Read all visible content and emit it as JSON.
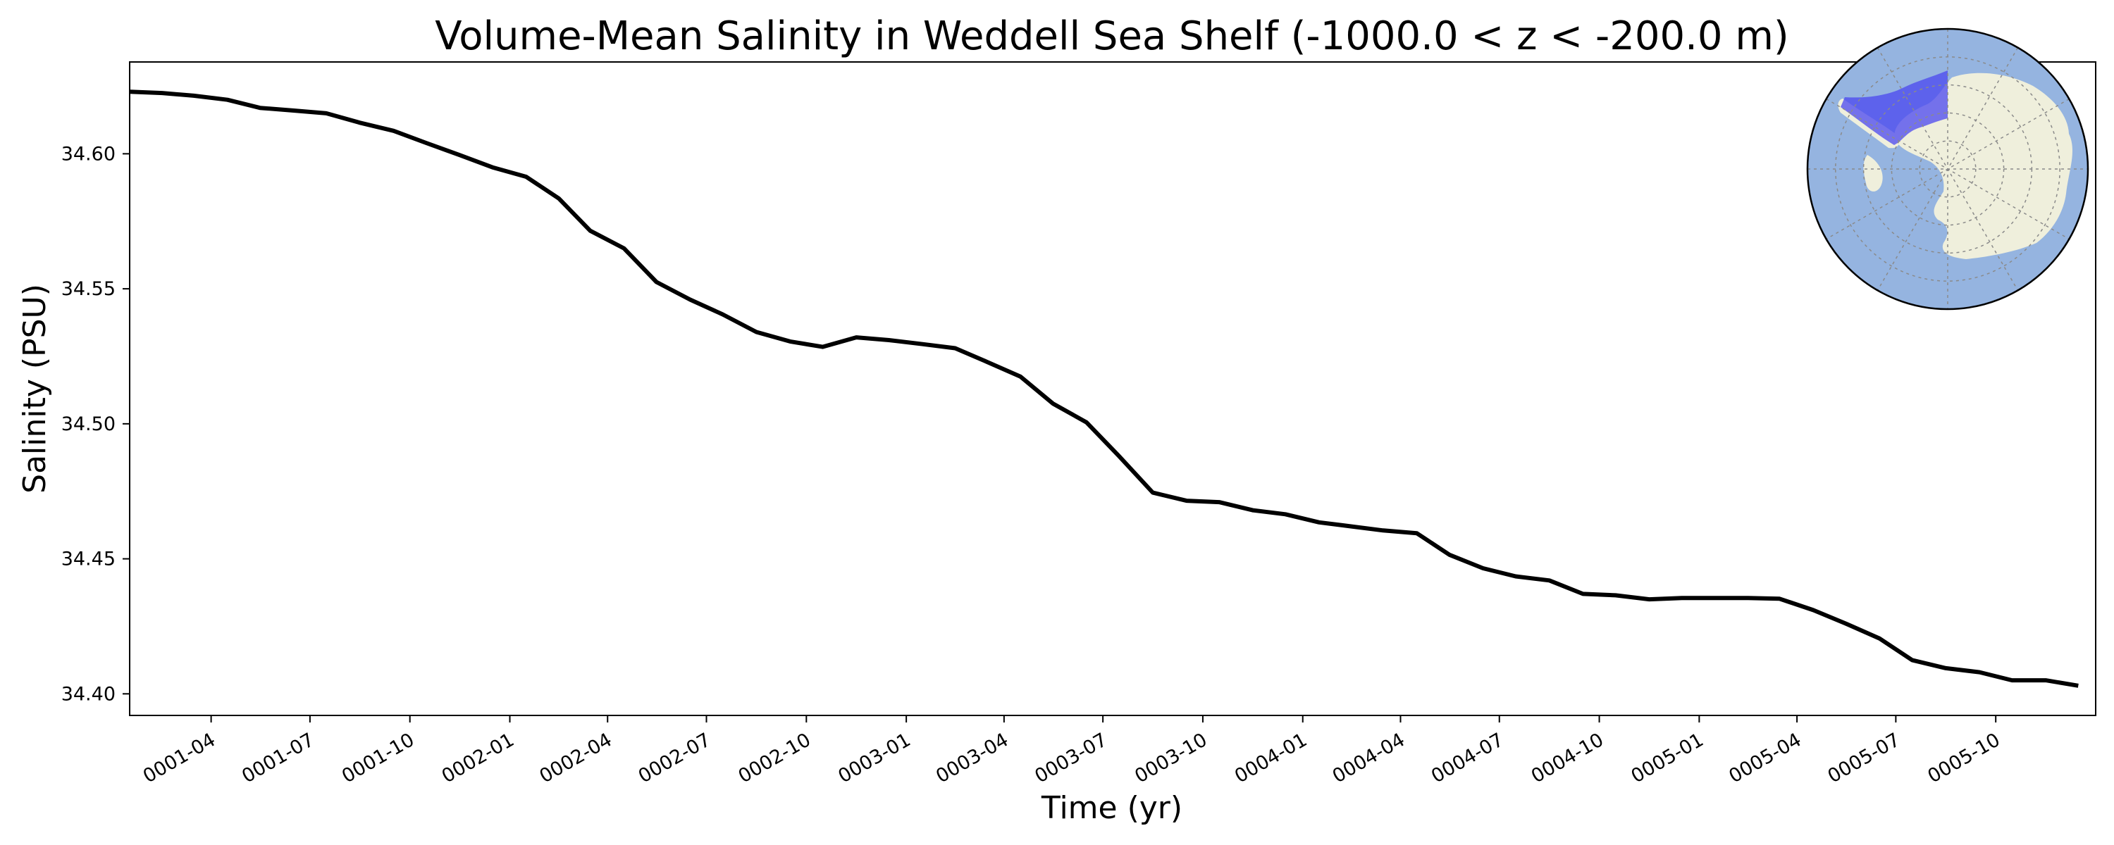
{
  "chart_data": {
    "type": "line",
    "title": "Volume-Mean Salinity in Weddell Sea Shelf (-1000.0 < z < -200.0 m)",
    "xlabel": "Time (yr)",
    "ylabel": "Salinity (PSU)",
    "xlim": [
      "0001-01-16",
      "0006-01-01"
    ],
    "ylim": [
      34.392,
      34.634
    ],
    "yticks": [
      34.4,
      34.45,
      34.5,
      34.55,
      34.6
    ],
    "ytick_labels": [
      "34.40",
      "34.45",
      "34.50",
      "34.55",
      "34.60"
    ],
    "xticks": [
      "0001-04-01",
      "0001-07-01",
      "0001-10-01",
      "0002-01-01",
      "0002-04-01",
      "0002-07-01",
      "0002-10-01",
      "0003-01-01",
      "0003-04-01",
      "0003-07-01",
      "0003-10-01",
      "0004-01-01",
      "0004-04-01",
      "0004-07-01",
      "0004-10-01",
      "0005-01-01",
      "0005-04-01",
      "0005-07-01",
      "0005-10-01"
    ],
    "xtick_labels": [
      "0001-04",
      "0001-07",
      "0001-10",
      "0002-01",
      "0002-04",
      "0002-07",
      "0002-10",
      "0003-01",
      "0003-04",
      "0003-07",
      "0003-10",
      "0004-01",
      "0004-04",
      "0004-07",
      "0004-10",
      "0005-01",
      "0005-04",
      "0005-07",
      "0005-10"
    ],
    "grid": false,
    "line_color": "#000000",
    "series": [
      {
        "x": [
          "0001-01-16",
          "0001-02-15",
          "0001-03-16",
          "0001-04-16",
          "0001-05-16",
          "0001-06-16",
          "0001-07-16",
          "0001-08-16",
          "0001-09-16",
          "0001-10-16",
          "0001-11-16",
          "0001-12-16",
          "0002-01-16",
          "0002-02-15",
          "0002-03-16",
          "0002-04-16",
          "0002-05-16",
          "0002-06-16",
          "0002-07-16",
          "0002-08-16",
          "0002-09-16",
          "0002-10-16",
          "0002-11-16",
          "0002-12-16",
          "0003-01-16",
          "0003-02-15",
          "0003-03-16",
          "0003-04-16",
          "0003-05-16",
          "0003-06-16",
          "0003-07-16",
          "0003-08-16",
          "0003-09-16",
          "0003-10-16",
          "0003-11-16",
          "0003-12-16",
          "0004-01-16",
          "0004-02-15",
          "0004-03-16",
          "0004-04-16",
          "0004-05-16",
          "0004-06-16",
          "0004-07-16",
          "0004-08-16",
          "0004-09-16",
          "0004-10-16",
          "0004-11-16",
          "0004-12-16",
          "0005-01-16",
          "0005-02-15",
          "0005-03-16",
          "0005-04-16",
          "0005-05-16",
          "0005-06-16",
          "0005-07-16",
          "0005-08-16",
          "0005-09-16",
          "0005-10-16",
          "0005-11-16",
          "0005-12-16"
        ],
        "values": [
          34.623,
          34.6225,
          34.6215,
          34.62,
          34.617,
          34.616,
          34.615,
          34.6115,
          34.6085,
          34.604,
          34.5995,
          34.595,
          34.5915,
          34.5835,
          34.5715,
          34.565,
          34.5525,
          34.546,
          34.5405,
          34.534,
          34.5305,
          34.5285,
          34.532,
          34.531,
          34.5295,
          34.528,
          34.523,
          34.5175,
          34.5075,
          34.5005,
          34.488,
          34.4745,
          34.4715,
          34.471,
          34.468,
          34.4665,
          34.4635,
          34.462,
          34.4605,
          34.4595,
          34.4515,
          34.4465,
          34.4435,
          34.442,
          34.437,
          34.4365,
          34.435,
          34.4355,
          34.4355,
          34.4355,
          34.4352,
          34.431,
          34.426,
          34.4205,
          34.4125,
          34.4095,
          34.408,
          34.405,
          34.405,
          34.403
        ]
      }
    ]
  },
  "inset_map": {
    "ocean_color": "#95b4e0",
    "land_color": "#efefdc",
    "region_color": "#4b47f0",
    "grid_style": "dotted"
  }
}
